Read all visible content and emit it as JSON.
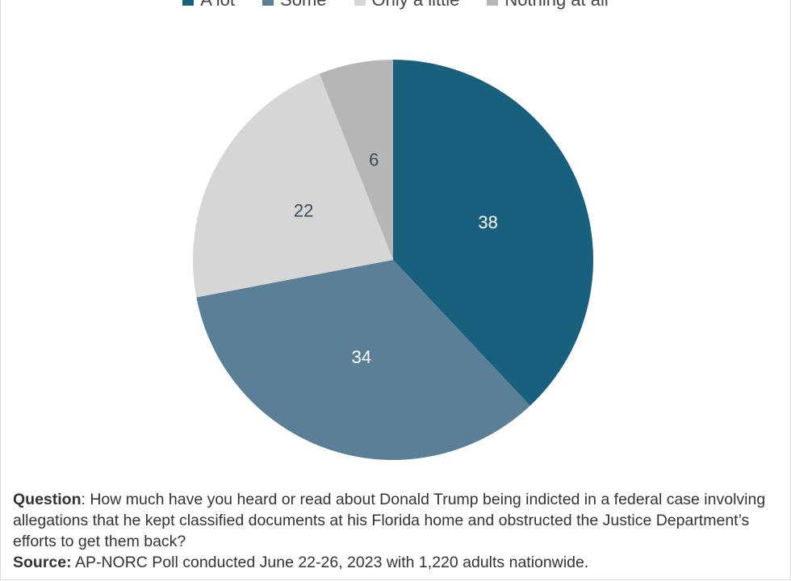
{
  "chart_data": {
    "type": "pie",
    "title": "",
    "categories": [
      "A lot",
      "Some",
      "Only a little",
      "Nothing at all"
    ],
    "values": [
      38,
      34,
      22,
      6
    ],
    "colors": [
      "#195f7e",
      "#5b7f96",
      "#d6d6d6",
      "#b6b6b6"
    ],
    "label_colors": [
      "#ffffff",
      "#ffffff",
      "#3a4a5a",
      "#3a4a5a"
    ],
    "legend_position": "top",
    "start_angle": "12 o'clock, clockwise"
  },
  "notes": {
    "question_label": "Question",
    "question_text": ": How much have you heard or read about Donald Trump being indicted in a federal case involving allegations that he kept classified documents at his Florida home and obstructed the Justice Department’s efforts to get them back?",
    "source_label": "Source:",
    "source_text": " AP-NORC Poll conducted June 22-26, 2023 with 1,220 adults nationwide."
  }
}
